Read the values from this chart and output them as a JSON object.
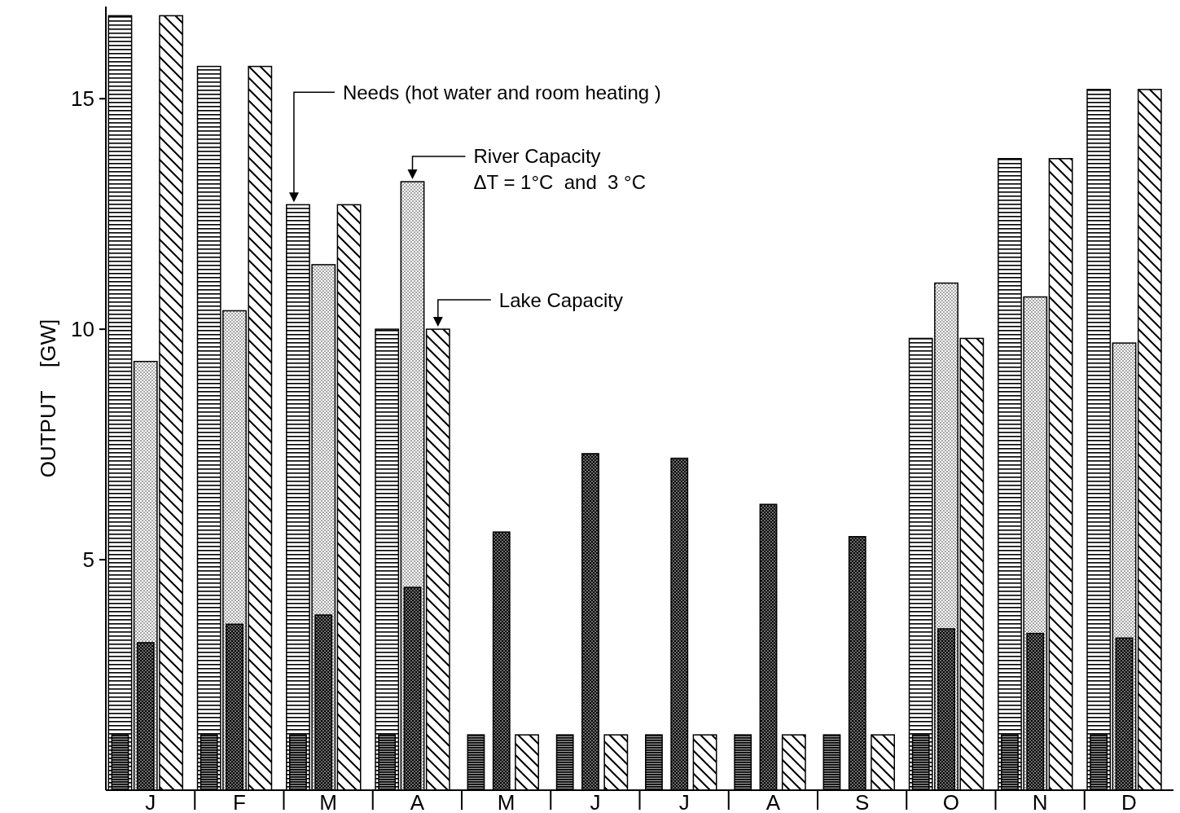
{
  "chart_data": {
    "type": "bar",
    "ylabel": "OUTPUT    [GW]",
    "categories": [
      "J",
      "F",
      "M",
      "A",
      "M",
      "J",
      "J",
      "A",
      "S",
      "O",
      "N",
      "D"
    ],
    "ylim": [
      0,
      17
    ],
    "yticks": [
      5,
      10,
      15
    ],
    "grid": false,
    "annotations": [
      "Needs (hot water and room heating )"
    ],
    "series": [
      {
        "color": "#000000",
        "values": [
          16.8,
          15.7,
          12.7,
          10.0,
          null,
          null,
          null,
          null,
          null,
          9.8,
          13.7,
          15.2
        ]
      },
      {
        "color": "#000000",
        "values": [
          1.2,
          1.2,
          1.2,
          1.2,
          1.2,
          1.2,
          1.2,
          1.2,
          1.2,
          1.2,
          1.2,
          1.2
        ]
      },
      {
        "name": "River Capacity\nΔT = 1°C  and  3 °C",
        "color": "#000000",
        "values": [
          9.3,
          10.4,
          11.4,
          13.2,
          null,
          null,
          null,
          null,
          null,
          11.0,
          10.7,
          9.7
        ]
      },
      {
        "color": "#000000",
        "values": [
          3.2,
          3.6,
          3.8,
          4.4,
          5.6,
          7.3,
          7.2,
          6.2,
          5.5,
          3.5,
          3.4,
          3.3
        ]
      },
      {
        "name": "Lake Capacity",
        "color": "#000000",
        "values": [
          16.8,
          15.7,
          12.7,
          10.0,
          1.2,
          1.2,
          1.2,
          1.2,
          1.2,
          9.8,
          13.7,
          15.2
        ]
      }
    ]
  }
}
